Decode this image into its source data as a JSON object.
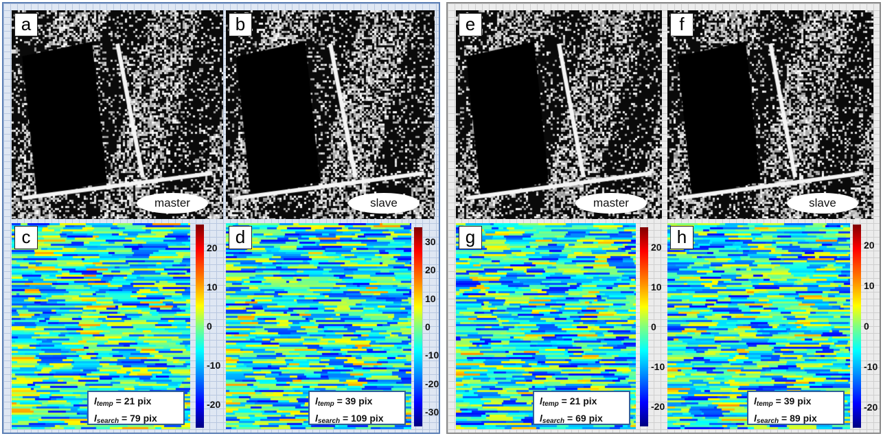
{
  "groups": [
    {
      "panels": [
        {
          "letter": "a",
          "kind": "sar",
          "label": "master",
          "seed": 11
        },
        {
          "letter": "b",
          "kind": "sar",
          "label": "slave",
          "seed": 23
        },
        {
          "letter": "c",
          "kind": "shift",
          "seed": 31,
          "colorbar": {
            "ticks": [
              "20",
              "10",
              "0",
              "-10",
              "-20"
            ],
            "range": [
              -26,
              26
            ]
          },
          "params": {
            "temp_symbol": "l",
            "temp_sub": "temp",
            "temp_value": "21 pix",
            "search_symbol": "l",
            "search_sub": "search",
            "search_value": "79 pix"
          }
        },
        {
          "letter": "d",
          "kind": "shift",
          "seed": 47,
          "colorbar": {
            "ticks": [
              "30",
              "20",
              "10",
              "0",
              "-10",
              "-20",
              "-30"
            ],
            "range": [
              -35,
              35
            ]
          },
          "params": {
            "temp_symbol": "l",
            "temp_sub": "temp",
            "temp_value": "39 pix",
            "search_symbol": "l",
            "search_sub": "search",
            "search_value": "109 pix"
          }
        }
      ]
    },
    {
      "panels": [
        {
          "letter": "e",
          "kind": "sar",
          "label": "master",
          "seed": 59
        },
        {
          "letter": "f",
          "kind": "sar",
          "label": "slave",
          "seed": 67
        },
        {
          "letter": "g",
          "kind": "shift",
          "seed": 73,
          "colorbar": {
            "ticks": [
              "20",
              "10",
              "0",
              "-10",
              "-20"
            ],
            "range": [
              -25,
              25
            ]
          },
          "params": {
            "temp_symbol": "l",
            "temp_sub": "temp",
            "temp_value": "21 pix",
            "search_symbol": "l",
            "search_sub": "search",
            "search_value": "69 pix"
          }
        },
        {
          "letter": "h",
          "kind": "shift",
          "seed": 83,
          "colorbar": {
            "ticks": [
              "20",
              "10",
              "0",
              "-10",
              "-20"
            ],
            "range": [
              -25,
              25
            ]
          },
          "params": {
            "temp_symbol": "l",
            "temp_sub": "temp",
            "temp_value": "39 pix",
            "search_symbol": "l",
            "search_sub": "search",
            "search_value": "89 pix"
          }
        }
      ]
    }
  ]
}
